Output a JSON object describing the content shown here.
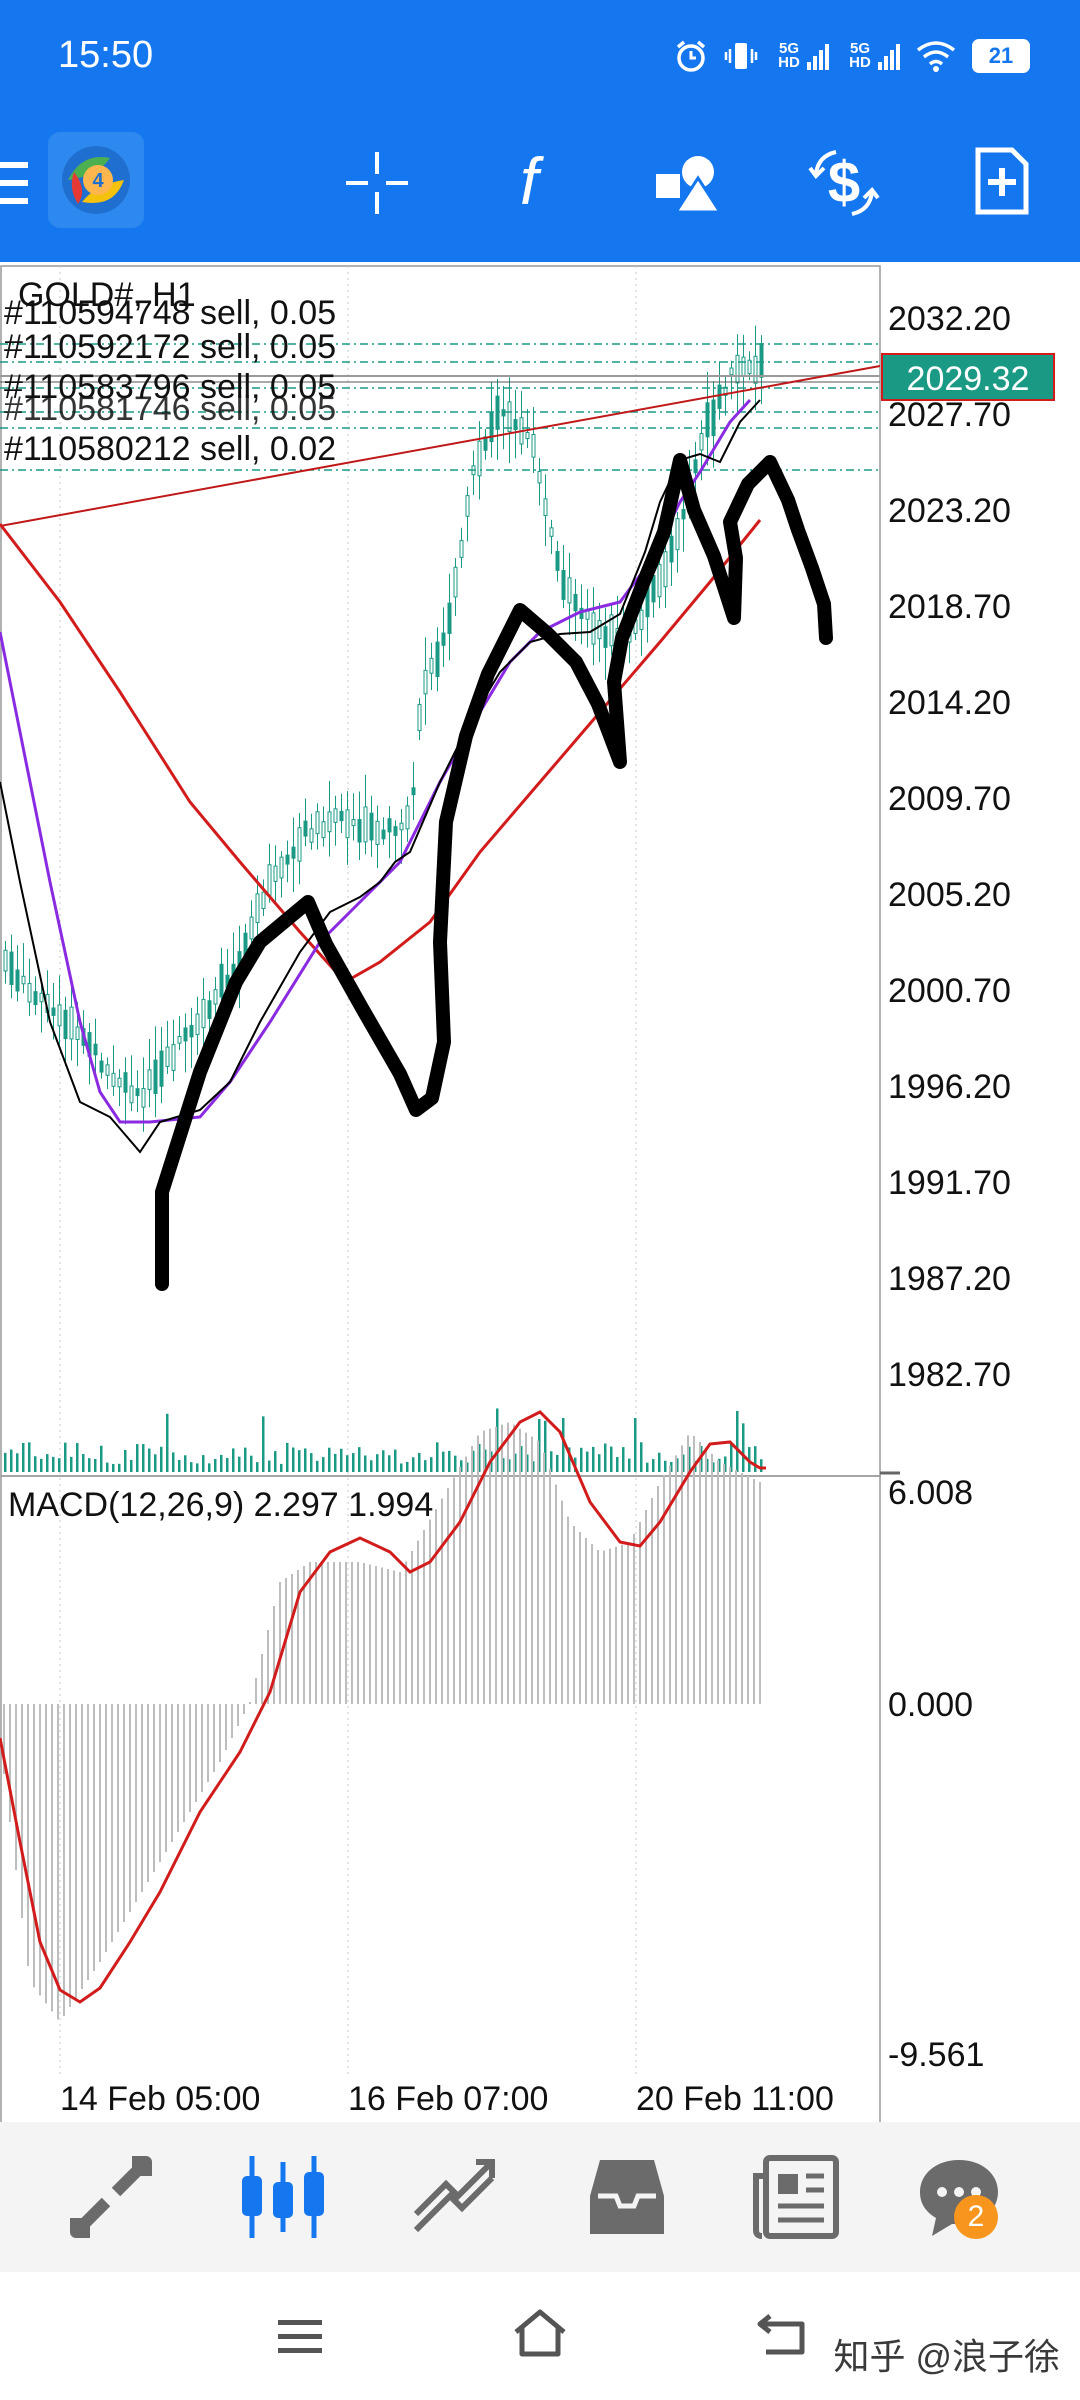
{
  "status_bar": {
    "time": "15:50",
    "network_1": "5G HD",
    "network_2": "5G HD",
    "battery": "21",
    "icons": [
      "alarm-icon",
      "vibrate-icon",
      "signal-icon",
      "signal-icon",
      "wifi-icon",
      "battery-icon"
    ]
  },
  "toolbar": {
    "icons": [
      "menu-icon",
      "metatrader-logo",
      "crosshair-icon",
      "indicators-icon",
      "objects-icon",
      "trade-icon",
      "new-order-icon"
    ]
  },
  "chart": {
    "symbol_label": "GOLD#, H1",
    "orders": [
      "#110594748 sell, 0.05",
      "#110592172 sell, 0.05",
      "#110583796 sell, 0.05",
      "#110581746 sell, 0.05",
      "#110580212 sell, 0.02"
    ],
    "current_price": "2029.32",
    "price_axis": [
      "2032.20",
      "2027.70",
      "2023.20",
      "2018.70",
      "2014.20",
      "2009.70",
      "2005.20",
      "2000.70",
      "1996.20",
      "1991.70",
      "1987.20",
      "1982.70"
    ],
    "macd_label": "MACD(12,26,9) 2.297 1.994",
    "macd_axis": [
      "6.008",
      "0.000",
      "-9.561"
    ],
    "time_axis": [
      "14 Feb 05:00",
      "16 Feb 07:00",
      "20 Feb 11:00"
    ],
    "colors": {
      "candles": "#1a9a85",
      "price_tag": "#1a9a85",
      "ma_slow": "#d21c1c",
      "ma_mid": "#8a2be2",
      "ma_fast": "#000000",
      "order_lines": "#1a9a85",
      "macd_histogram": "#bdbdbd",
      "macd_signal": "#d21c1c",
      "drawing": "#000000"
    }
  },
  "bottom_nav": {
    "items": [
      "quotes-icon",
      "charts-icon",
      "trade-icon",
      "history-icon",
      "news-icon",
      "messages-icon"
    ],
    "active": "charts-icon",
    "messages_badge": "2",
    "accent": "#1577f0",
    "inactive": "#6b6b6b"
  },
  "system_nav": {
    "icons": [
      "recents-icon",
      "home-icon",
      "back-icon"
    ],
    "watermark": "知乎 @浪子徐"
  }
}
